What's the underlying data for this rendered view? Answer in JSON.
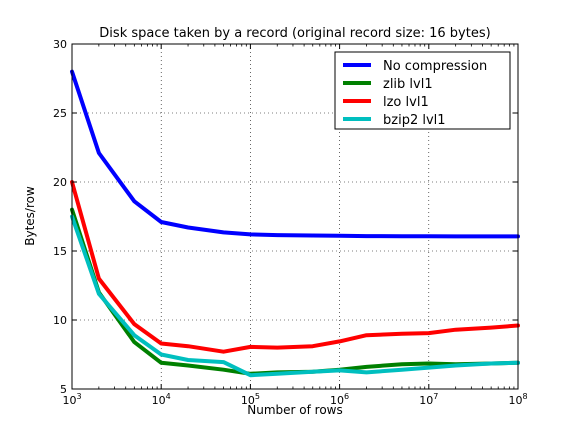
{
  "chart_data": {
    "type": "line",
    "title": "Disk space taken by a record (original record size: 16 bytes)",
    "xlabel": "Number of rows",
    "ylabel": "Bytes/row",
    "xscale": "log",
    "xlim": [
      1000,
      100000000
    ],
    "ylim": [
      5,
      30
    ],
    "grid": true,
    "legend_position": "upper-right",
    "x_ticks": [
      {
        "base": "10",
        "exp": "3"
      },
      {
        "base": "10",
        "exp": "4"
      },
      {
        "base": "10",
        "exp": "5"
      },
      {
        "base": "10",
        "exp": "6"
      },
      {
        "base": "10",
        "exp": "7"
      },
      {
        "base": "10",
        "exp": "8"
      }
    ],
    "y_ticks": [
      "5",
      "10",
      "15",
      "20",
      "25",
      "30"
    ],
    "x": [
      1000,
      2000,
      5000,
      10000,
      20000,
      50000,
      100000,
      200000,
      500000,
      1000000,
      2000000,
      5000000,
      10000000,
      20000000,
      50000000,
      100000000
    ],
    "series": [
      {
        "name": "No compression",
        "color": "#0000ff",
        "values": [
          28.0,
          22.1,
          18.6,
          17.1,
          16.7,
          16.35,
          16.2,
          16.15,
          16.12,
          16.1,
          16.08,
          16.07,
          16.07,
          16.06,
          16.06,
          16.06
        ]
      },
      {
        "name": "zlib lvl1",
        "color": "#008000",
        "values": [
          18.0,
          12.0,
          8.4,
          6.9,
          6.7,
          6.4,
          6.1,
          6.2,
          6.25,
          6.4,
          6.6,
          6.8,
          6.85,
          6.8,
          6.85,
          6.9
        ]
      },
      {
        "name": "lzo lvl1",
        "color": "#ff0000",
        "values": [
          20.0,
          13.0,
          9.7,
          8.3,
          8.1,
          7.7,
          8.05,
          8.0,
          8.1,
          8.45,
          8.9,
          9.0,
          9.05,
          9.3,
          9.45,
          9.6
        ]
      },
      {
        "name": "bzip2 lvl1",
        "color": "#00bfbf",
        "values": [
          17.5,
          11.9,
          8.9,
          7.5,
          7.1,
          6.95,
          6.0,
          6.1,
          6.25,
          6.35,
          6.2,
          6.4,
          6.55,
          6.7,
          6.85,
          6.9
        ]
      }
    ]
  }
}
